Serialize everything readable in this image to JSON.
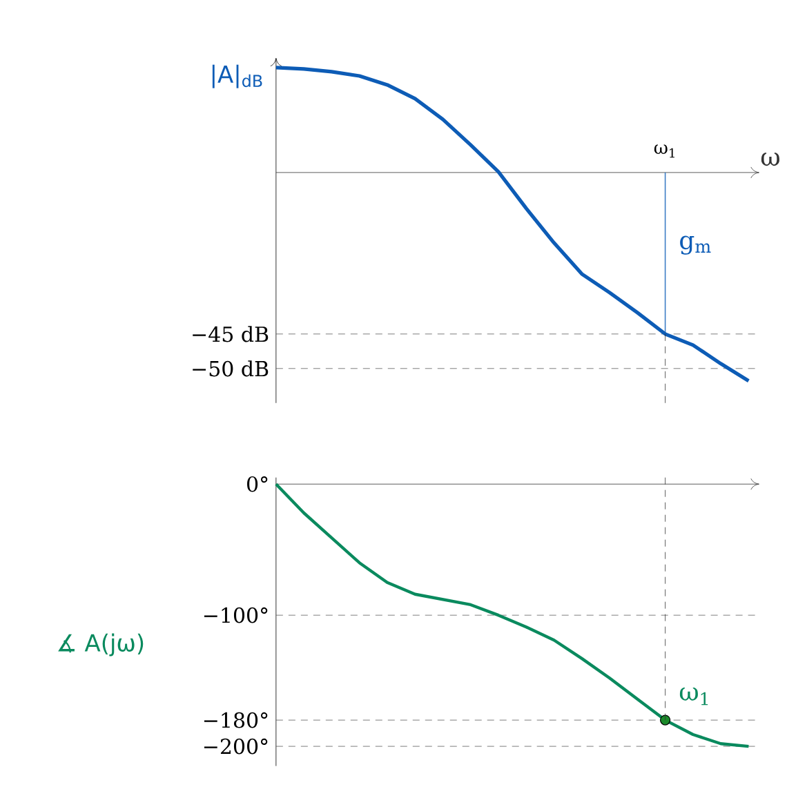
{
  "chart_data": [
    {
      "type": "line",
      "ylabel": "|A|$_{dB}$",
      "ylim": [
        -55,
        -5
      ],
      "tick_labels": "y",
      "yticks": [
        {
          "value": -45,
          "label": "−45 dB"
        },
        {
          "value": -50,
          "label": "−50 dB"
        }
      ],
      "categories": [
        null,
        null,
        null,
        null,
        null,
        null,
        null,
        null,
        null,
        null,
        null,
        null,
        null,
        null,
        null,
        null,
        null,
        null
      ],
      "series": [
        {
          "color": "#0d5cb6",
          "values": [
            -6.4,
            -6.6,
            -7.0,
            -7.6,
            -8.9,
            -10.9,
            -13.9,
            -17.6,
            -21.5,
            -26.8,
            -31.8,
            -36.3,
            -39.0,
            -41.9,
            -45,
            -46.6,
            -49.3,
            -51.8
          ]
        }
      ],
      "ref_lines": [
        {
          "axis": "y",
          "value": -21.6,
          "label": "ω"
        },
        {
          "axis": "y",
          "value": -45,
          "line_style": "dashed"
        },
        {
          "axis": "y",
          "value": -50,
          "line_style": "dashed"
        }
      ],
      "annotations": [
        "ω$_{1}$",
        "g$_{m}$"
      ]
    },
    {
      "type": "line",
      "ylabel": "∡ A(jω)",
      "ylim": [
        -215,
        5
      ],
      "tick_labels": "y",
      "yticks": [
        {
          "value": 0,
          "label": "0°"
        },
        {
          "value": -100,
          "label": "−100°"
        },
        {
          "value": -180,
          "label": "−180°"
        },
        {
          "value": -200,
          "label": "−200°"
        }
      ],
      "categories": [
        null,
        null,
        null,
        null,
        null,
        null,
        null,
        null,
        null,
        null,
        null,
        null,
        null,
        null,
        null,
        null,
        null,
        null
      ],
      "series": [
        {
          "color": "#0a8a5e",
          "values": [
            0,
            -22,
            -41,
            -60,
            -75,
            -84,
            -88,
            -92,
            -100,
            -109,
            -119,
            -133,
            -148,
            -164,
            -180,
            -191,
            -198,
            -200
          ]
        },
        {
          "type": "scatter",
          "marker": "circle",
          "color": "#1b8a2a",
          "values": [
            null,
            null,
            null,
            null,
            null,
            null,
            null,
            null,
            null,
            null,
            null,
            null,
            null,
            null,
            -180,
            null,
            null,
            null
          ]
        }
      ],
      "ref_lines": [
        {
          "axis": "y",
          "value": 0
        },
        {
          "axis": "y",
          "value": -100,
          "line_style": "dashed"
        },
        {
          "axis": "y",
          "value": -180,
          "line_style": "dashed"
        },
        {
          "axis": "y",
          "value": -200,
          "line_style": "dashed"
        }
      ],
      "annotations": [
        "ω$_{1}$"
      ]
    }
  ]
}
